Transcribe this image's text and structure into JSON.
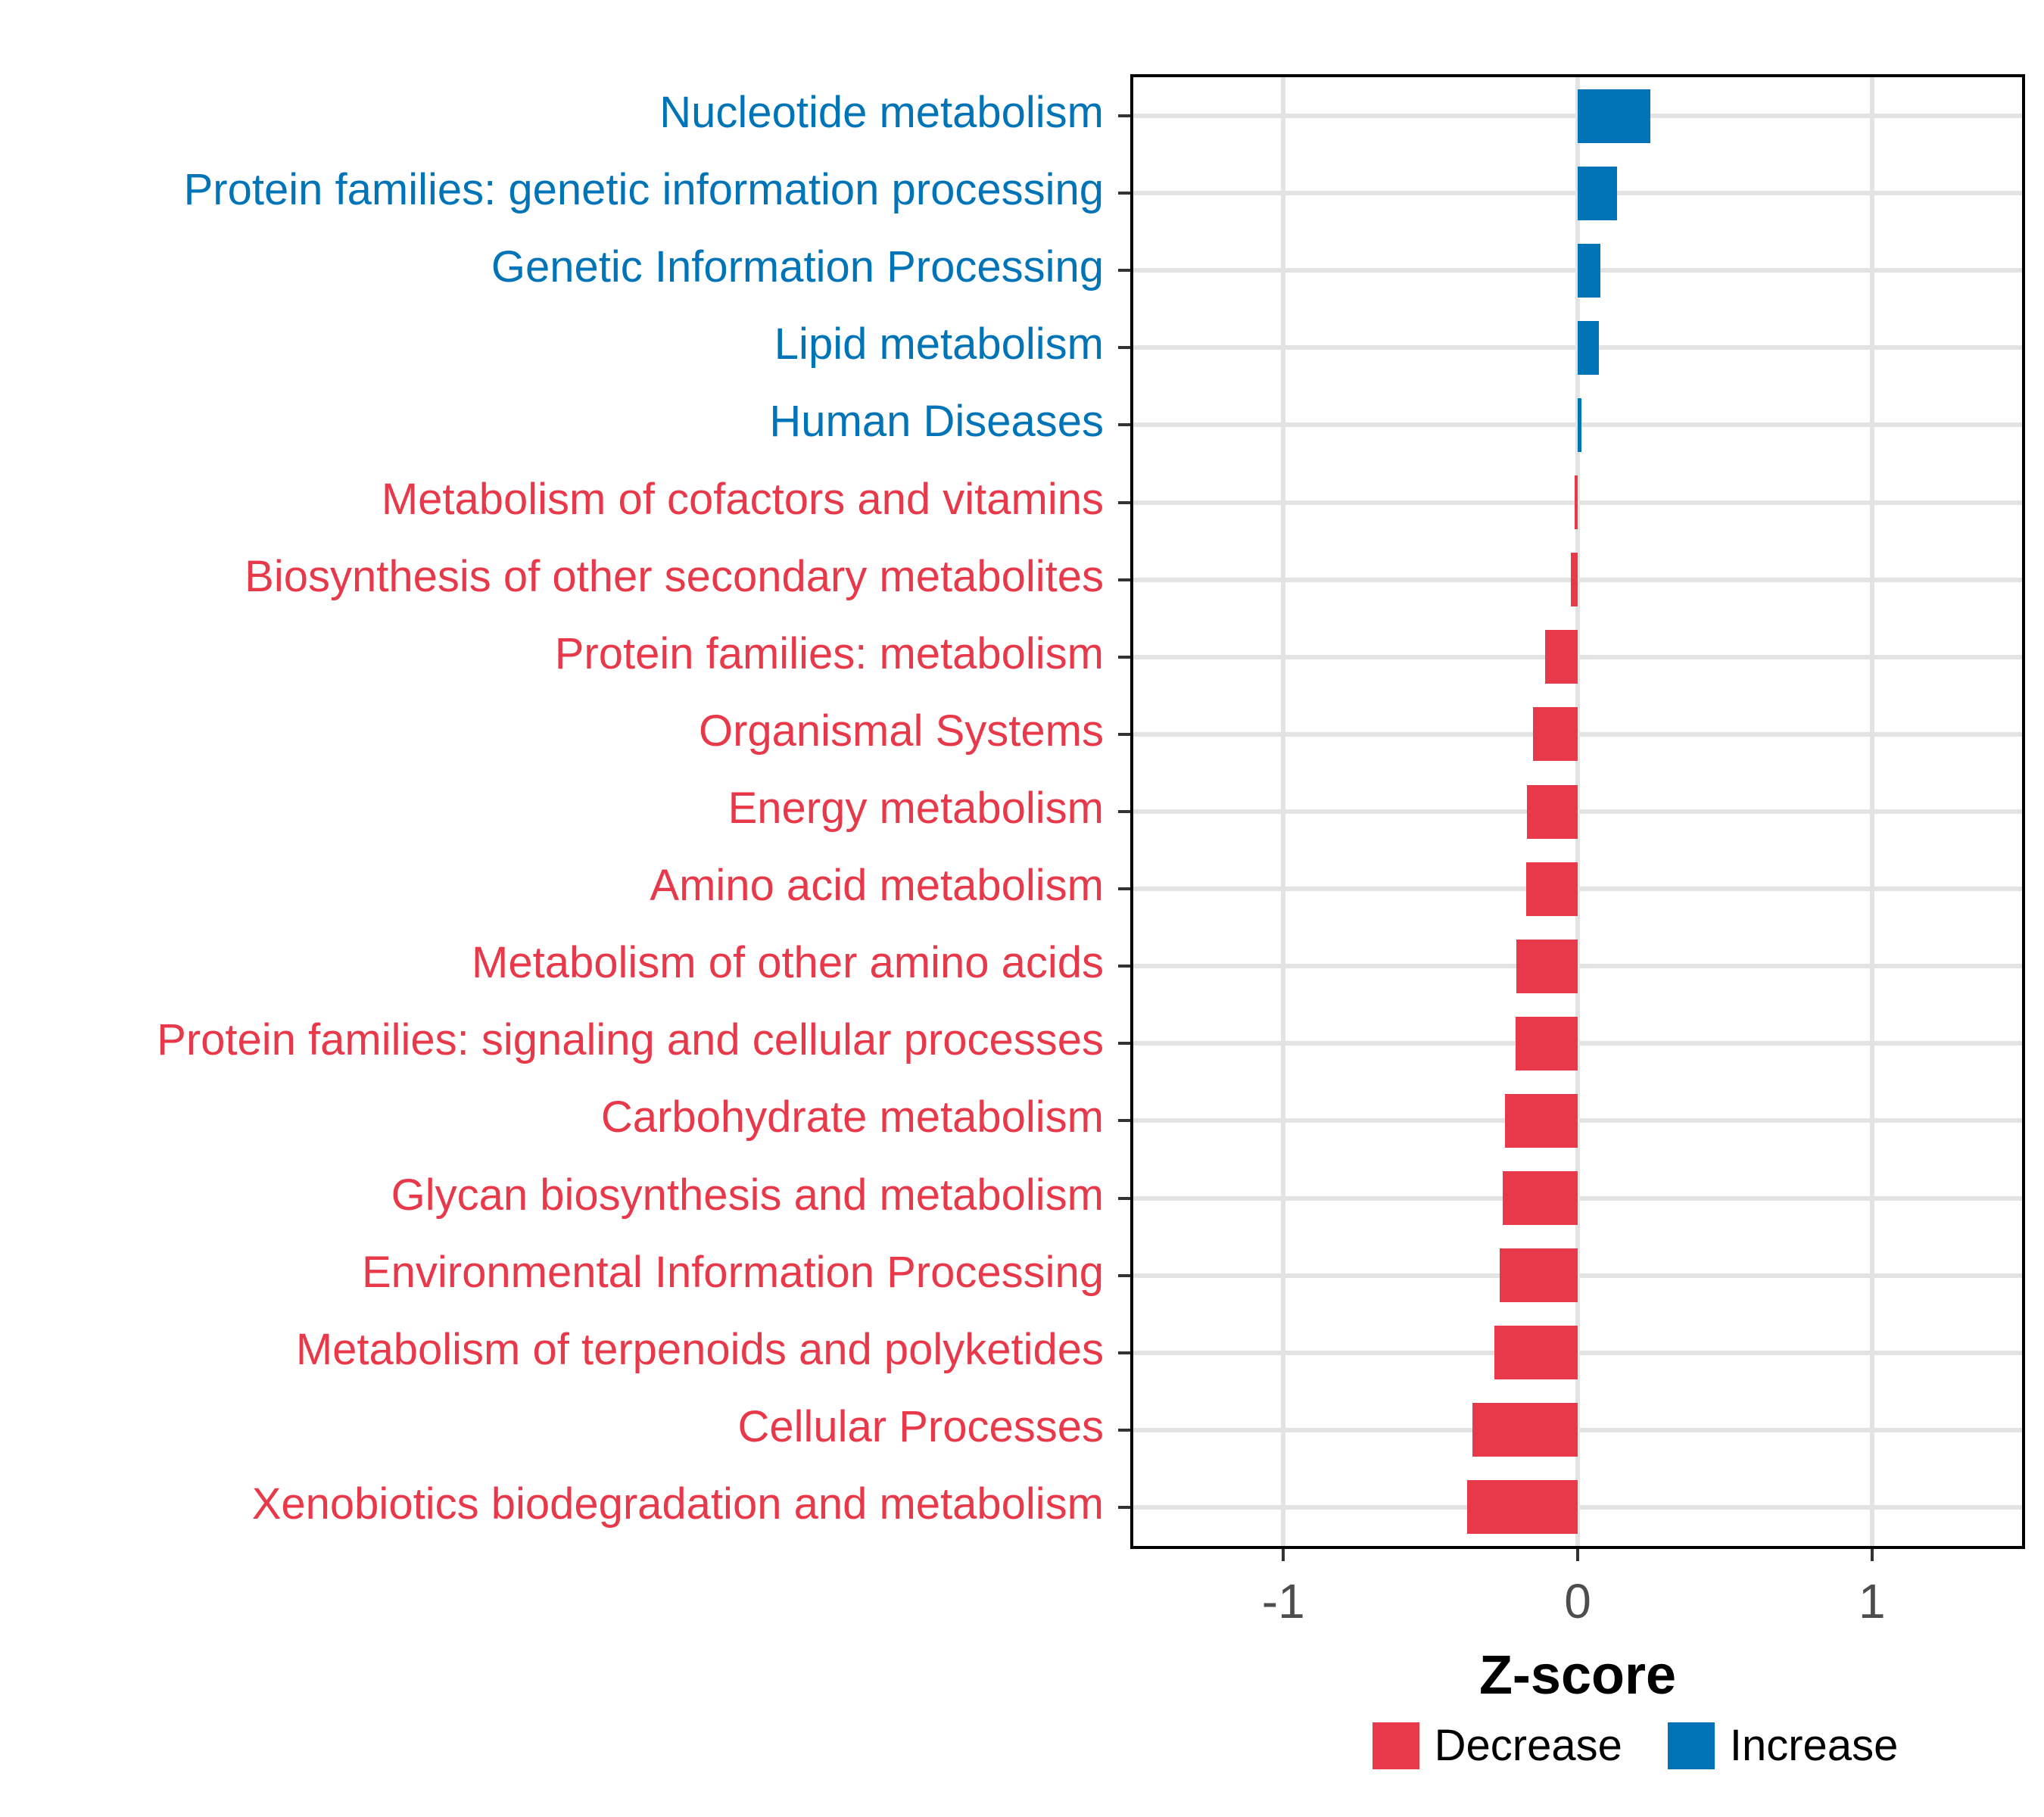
{
  "chart_data": {
    "type": "bar",
    "orientation": "horizontal",
    "title": "",
    "xlabel": "Z-score",
    "ylabel": "",
    "xlim": [
      -1.51,
      1.51
    ],
    "x_ticks": [
      {
        "value": -1,
        "label": "-1"
      },
      {
        "value": 0,
        "label": "0"
      },
      {
        "value": 1,
        "label": "1"
      }
    ],
    "grid": "vertical major gridlines at x ticks, horizontal gridline at each category",
    "legend_position": "bottom",
    "categories": [
      "Nucleotide metabolism",
      "Protein families: genetic information processing",
      "Genetic Information Processing",
      "Lipid metabolism",
      "Human Diseases",
      "Metabolism of cofactors and vitamins",
      "Biosynthesis of other secondary metabolites",
      "Protein families: metabolism",
      "Organismal Systems",
      "Energy metabolism",
      "Amino acid metabolism",
      "Metabolism of other amino acids",
      "Protein families: signaling and cellular processes",
      "Carbohydrate metabolism",
      "Glycan biosynthesis and metabolism",
      "Environmental Information Processing",
      "Metabolism of terpenoids and polyketides",
      "Cellular Processes",
      "Xenobiotics biodegradation and metabolism"
    ],
    "values": [
      0.246,
      0.133,
      0.078,
      0.073,
      0.014,
      -0.011,
      -0.022,
      -0.11,
      -0.151,
      -0.172,
      -0.174,
      -0.208,
      -0.211,
      -0.247,
      -0.254,
      -0.266,
      -0.284,
      -0.358,
      -0.375
    ],
    "directions": [
      "Increase",
      "Increase",
      "Increase",
      "Increase",
      "Increase",
      "Decrease",
      "Decrease",
      "Decrease",
      "Decrease",
      "Decrease",
      "Decrease",
      "Decrease",
      "Decrease",
      "Decrease",
      "Decrease",
      "Decrease",
      "Decrease",
      "Decrease",
      "Decrease"
    ],
    "colors": {
      "Decrease": "#e8394a",
      "Increase": "#0074b6"
    },
    "legend_items": [
      {
        "label": "Decrease",
        "color": "#e8394a"
      },
      {
        "label": "Increase",
        "color": "#0074b6"
      }
    ]
  }
}
